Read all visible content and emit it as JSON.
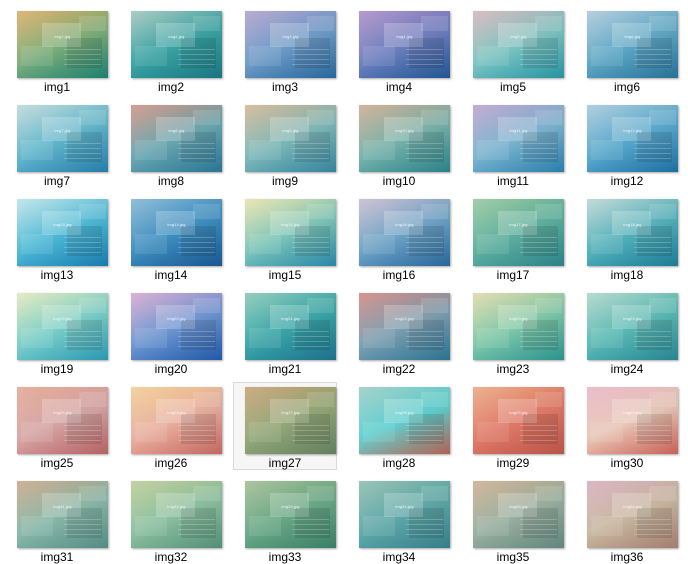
{
  "items": [
    {
      "label": "img1",
      "file": "img1.jpg",
      "c1": "#d6a75a",
      "c2": "#7fae7a",
      "c3": "#1f8a78"
    },
    {
      "label": "img2",
      "file": "img2.jpg",
      "c1": "#9ac0b8",
      "c2": "#3aa4a3",
      "c3": "#1c7f8c"
    },
    {
      "label": "img3",
      "file": "img3.jpg",
      "c1": "#a89ac8",
      "c2": "#6f9cc8",
      "c3": "#2d6fa8"
    },
    {
      "label": "img4",
      "file": "img4.jpg",
      "c1": "#a586c2",
      "c2": "#6f7fbf",
      "c3": "#245e9c"
    },
    {
      "label": "img5",
      "file": "img5.jpg",
      "c1": "#d0b0b4",
      "c2": "#7ec4c1",
      "c3": "#2b9fb0"
    },
    {
      "label": "img6",
      "file": "img6.jpg",
      "c1": "#a6c4d8",
      "c2": "#5fa8c5",
      "c3": "#2b7aa3"
    },
    {
      "label": "img7",
      "file": "img7.jpg",
      "c1": "#b8d6d6",
      "c2": "#62b7cc",
      "c3": "#2a87b6"
    },
    {
      "label": "img8",
      "file": "img8.jpg",
      "c1": "#cc8a7a",
      "c2": "#6aa7b0",
      "c3": "#2d7ea0"
    },
    {
      "label": "img9",
      "file": "img9.jpg",
      "c1": "#cfb08a",
      "c2": "#7fb8b8",
      "c3": "#3a8faa"
    },
    {
      "label": "img10",
      "file": "img10.jpg",
      "c1": "#c7a488",
      "c2": "#78b2aa",
      "c3": "#2e8c93"
    },
    {
      "label": "img11",
      "file": "img11.jpg",
      "c1": "#b59cc8",
      "c2": "#7db4d0",
      "c3": "#2e89b8"
    },
    {
      "label": "img12",
      "file": "img12.jpg",
      "c1": "#9fc4d8",
      "c2": "#5aa9cc",
      "c3": "#2078b0"
    },
    {
      "label": "img13",
      "file": "img13.jpg",
      "c1": "#b8e0e6",
      "c2": "#4fbad6",
      "c3": "#1a86bb"
    },
    {
      "label": "img14",
      "file": "img14.jpg",
      "c1": "#7ab0d0",
      "c2": "#3f8fc0",
      "c3": "#1a5f9c"
    },
    {
      "label": "img15",
      "file": "img15.jpg",
      "c1": "#e6e0a6",
      "c2": "#7fc6b8",
      "c3": "#2b92b4"
    },
    {
      "label": "img16",
      "file": "img16.jpg",
      "c1": "#c4b6cc",
      "c2": "#6fa4c6",
      "c3": "#2c6fa6"
    },
    {
      "label": "img17",
      "file": "img17.jpg",
      "c1": "#8ec296",
      "c2": "#5fb09e",
      "c3": "#2f8d93"
    },
    {
      "label": "img18",
      "file": "img18.jpg",
      "c1": "#b7d2d0",
      "c2": "#55b2bb",
      "c3": "#1f86a2"
    },
    {
      "label": "img19",
      "file": "img19.jpg",
      "c1": "#dfe6b6",
      "c2": "#7ccfc8",
      "c3": "#2fa4c0"
    },
    {
      "label": "img20",
      "file": "img20.jpg",
      "c1": "#d2a2cc",
      "c2": "#6f97d2",
      "c3": "#2460b4"
    },
    {
      "label": "img21",
      "file": "img21.jpg",
      "c1": "#7fc3b2",
      "c2": "#3aa6a8",
      "c3": "#1f7a96"
    },
    {
      "label": "img22",
      "file": "img22.jpg",
      "c1": "#cc7f7a",
      "c2": "#7e9fb0",
      "c3": "#2f7c9e"
    },
    {
      "label": "img23",
      "file": "img23.jpg",
      "c1": "#dcd6a2",
      "c2": "#7fc8a8",
      "c3": "#2f9e9a"
    },
    {
      "label": "img24",
      "file": "img24.jpg",
      "c1": "#a8d2c4",
      "c2": "#5bbab4",
      "c3": "#2b8f9e"
    },
    {
      "label": "img25",
      "file": "img25.jpg",
      "c1": "#e0a08a",
      "c2": "#d6a6a6",
      "c3": "#c46a6a"
    },
    {
      "label": "img26",
      "file": "img26.jpg",
      "c1": "#f0c88a",
      "c2": "#e8b0a0",
      "c3": "#d47068"
    },
    {
      "label": "img27",
      "file": "img27.jpg",
      "c1": "#c29a6a",
      "c2": "#94a878",
      "c3": "#6a8a66"
    },
    {
      "label": "img28",
      "file": "img28.jpg",
      "c1": "#94c8c0",
      "c2": "#5fd0d0",
      "c3": "#c06a5a"
    },
    {
      "label": "img29",
      "file": "img29.jpg",
      "c1": "#e8a07a",
      "c2": "#e07a68",
      "c3": "#c85a4e"
    },
    {
      "label": "img30",
      "file": "img30.jpg",
      "c1": "#e6b0c0",
      "c2": "#e8c8b8",
      "c3": "#d86a5e"
    },
    {
      "label": "img31",
      "file": "img31.jpg",
      "c1": "#c4a080",
      "c2": "#8ab8a8",
      "c3": "#5a9890"
    },
    {
      "label": "img32",
      "file": "img32.jpg",
      "c1": "#b6c88e",
      "c2": "#8cc0a0",
      "c3": "#5a9a80"
    },
    {
      "label": "img33",
      "file": "img33.jpg",
      "c1": "#9ab88a",
      "c2": "#6aa886",
      "c3": "#3e8a70"
    },
    {
      "label": "img34",
      "file": "img34.jpg",
      "c1": "#84b8a8",
      "c2": "#5fa8a8",
      "c3": "#3a8896"
    },
    {
      "label": "img35",
      "file": "img35.jpg",
      "c1": "#c8a888",
      "c2": "#9ab0a0",
      "c3": "#6a9088"
    },
    {
      "label": "img36",
      "file": "img36.jpg",
      "c1": "#d4a8b8",
      "c2": "#c8b8a0",
      "c3": "#b08878"
    }
  ],
  "selected_index": 26
}
